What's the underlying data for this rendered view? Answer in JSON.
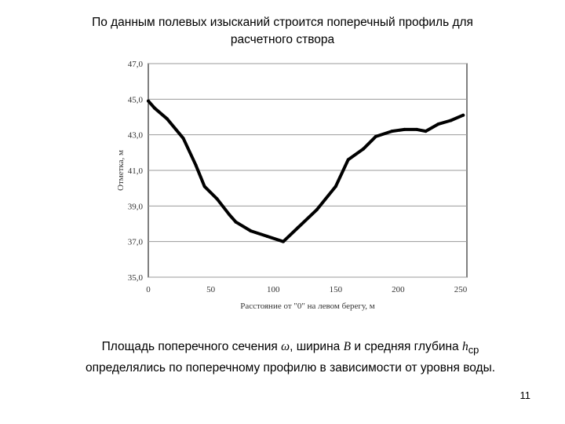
{
  "slide": {
    "title_line1": "По данным полевых изысканий строится поперечный профиль для",
    "title_line2": "расчетного створа",
    "body_part1": "Площадь поперечного сечения ",
    "symbol_omega": "ω",
    "body_part2": ", ширина ",
    "symbol_b": "B",
    "body_part3": " и средняя глубина ",
    "symbol_h": "h",
    "symbol_h_sub": "ср",
    "body_line2": "определялись по поперечному профилю в зависимости от уровня воды.",
    "page_number": "11"
  },
  "chart_data": {
    "type": "line",
    "title": "",
    "xlabel": "Расстояние от \"0\" на левом берегу, м",
    "ylabel": "Отметка, м",
    "xlim": [
      0,
      255
    ],
    "ylim": [
      35,
      47
    ],
    "x_ticks": [
      "0",
      "50",
      "100",
      "150",
      "200",
      "250"
    ],
    "y_ticks": [
      "35,0",
      "37,0",
      "39,0",
      "41,0",
      "43,0",
      "45,0",
      "47,0"
    ],
    "grid": "horizontal",
    "series_color": "#000000",
    "series": [
      {
        "name": "",
        "x": [
          0,
          5,
          15,
          28,
          38,
          45,
          55,
          65,
          70,
          82,
          95,
          108,
          120,
          135,
          150,
          160,
          172,
          182,
          195,
          205,
          215,
          222,
          232,
          242,
          252
        ],
        "y": [
          44.9,
          44.5,
          43.9,
          42.8,
          41.3,
          40.1,
          39.4,
          38.5,
          38.1,
          37.6,
          37.3,
          37.0,
          37.8,
          38.8,
          40.1,
          41.6,
          42.2,
          42.9,
          43.2,
          43.3,
          43.3,
          43.2,
          43.6,
          43.8,
          44.1
        ]
      }
    ]
  }
}
